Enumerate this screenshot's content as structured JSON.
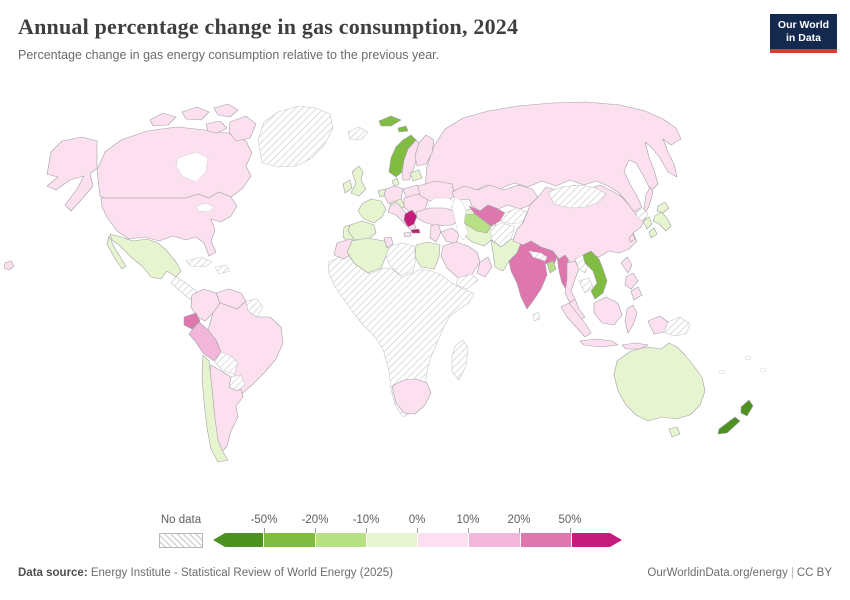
{
  "header": {
    "title": "Annual percentage change in gas consumption, 2024",
    "subtitle": "Percentage change in gas energy consumption relative to the previous year.",
    "logo_line1": "Our World",
    "logo_line2": "in Data",
    "logo_bg": "#13294e",
    "logo_accent": "#d93a35"
  },
  "legend": {
    "no_data_label": "No data",
    "ticks": [
      "-50%",
      "-20%",
      "-10%",
      "0%",
      "10%",
      "20%",
      "50%"
    ],
    "segment_colors": [
      "#4d9221",
      "#7fbc41",
      "#b8e186",
      "#e6f5d0",
      "#fde0ef",
      "#f1b6da",
      "#de77ae",
      "#c51b7d"
    ]
  },
  "footer": {
    "datasource_label": "Data source:",
    "datasource_text": " Energy Institute - Statistical Review of World Energy (2025)",
    "link": "OurWorldinData.org/energy",
    "separator": "|",
    "license": "CC BY"
  },
  "chart_data": {
    "type": "choropleth",
    "title": "Annual percentage change in gas consumption, 2024",
    "unit": "%",
    "legend_position": "bottom",
    "bins": [
      {
        "range": "< -50%",
        "color": "#4d9221"
      },
      {
        "range": "-50% to -20%",
        "color": "#7fbc41"
      },
      {
        "range": "-20% to -10%",
        "color": "#b8e186"
      },
      {
        "range": "-10% to 0%",
        "color": "#e6f5d0"
      },
      {
        "range": "0% to 10%",
        "color": "#fde0ef"
      },
      {
        "range": "10% to 20%",
        "color": "#f1b6da"
      },
      {
        "range": "20% to 50%",
        "color": "#de77ae"
      },
      {
        "range": "> 50%",
        "color": "#c51b7d"
      },
      {
        "range": "No data",
        "color": "hatch"
      }
    ],
    "palette": {
      "n3": "#4d9221",
      "n2": "#7fbc41",
      "n1": "#b8e186",
      "n0": "#e6f5d0",
      "p0": "#fde0ef",
      "p1": "#f1b6da",
      "p2": "#de77ae",
      "p3": "#c51b7d"
    },
    "countries": {
      "usa": "p0",
      "canada": "p0",
      "greenland": "nd",
      "mexico": "n0",
      "central-america": "nd",
      "cuba": "nd",
      "hispaniola": "nd",
      "colombia": "p0",
      "venezuela": "p0",
      "guyanas": "nd",
      "brazil": "p0",
      "ecuador": "p2",
      "peru": "p1",
      "bolivia": "nd",
      "paraguay": "nd",
      "argentina": "p0",
      "chile": "n0",
      "iceland": "nd",
      "norway": "n2",
      "sweden": "p0",
      "finland": "p0",
      "baltics": "n0",
      "denmark": "n0",
      "uk": "n0",
      "ireland": "n0",
      "benelux": "n0",
      "france": "n0",
      "spain": "n0",
      "portugal": "n0",
      "germany": "p0",
      "poland": "p0",
      "central-europe": "n0",
      "italy": "p0",
      "balkans": "p0",
      "greece": "p3",
      "ukraine": "p0",
      "russia": "p0",
      "turkey": "p0",
      "azerbaijan": "n0",
      "levant": "p0",
      "iraq": "p0",
      "iran": "n0",
      "saudi-arabia": "p0",
      "yemen": "nd",
      "oman": "p0",
      "africa": "nd",
      "morocco": "p0",
      "algeria": "n0",
      "tunisia": "p0",
      "libya": "nd",
      "egypt": "n0",
      "south-africa": "p0",
      "madagascar": "nd",
      "kazakhstan": "p0",
      "uzbekistan": "p2",
      "turkmenistan": "n1",
      "kyrgyzstan-tajikistan": "nd",
      "afghanistan": "nd",
      "pakistan": "n0",
      "india": "p2",
      "nepal": "nd",
      "sri-lanka": "nd",
      "bangladesh": "n1",
      "myanmar": "p2",
      "china": "p0",
      "mongolia": "nd",
      "taiwan": "p0",
      "north-korea": "nd",
      "south-korea": "n0",
      "japan": "n0",
      "thailand": "p0",
      "laos": "nd",
      "vietnam": "n2",
      "cambodia": "nd",
      "malaysia": "p0",
      "indonesia": "p0",
      "papua-new-guinea": "nd",
      "philippines": "p0",
      "australia": "n0",
      "new-zealand": "n3"
    }
  }
}
